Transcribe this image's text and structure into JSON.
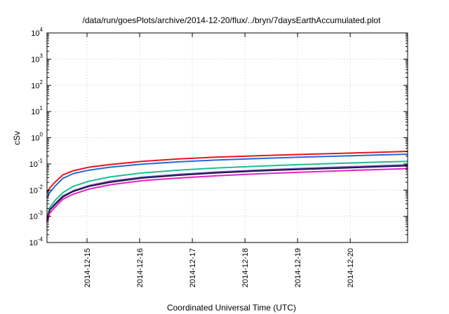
{
  "chart_data": {
    "type": "line",
    "title": "/data/run/goesPlots/archive/2014-12-20/flux/../bryn/7daysEarthAccumulated.plot",
    "xlabel": "Coordinated Universal Time (UTC)",
    "ylabel": "cSv",
    "yscale": "log",
    "ylim": [
      0.0001,
      10000
    ],
    "xlim": [
      0,
      6.85
    ],
    "grid": true,
    "y_ticks": [
      {
        "base": "10",
        "exp": "-4",
        "value": 0.0001
      },
      {
        "base": "10",
        "exp": "-3",
        "value": 0.001
      },
      {
        "base": "10",
        "exp": "-2",
        "value": 0.01
      },
      {
        "base": "10",
        "exp": "-1",
        "value": 0.1
      },
      {
        "base": "10",
        "exp": "0",
        "value": 1
      },
      {
        "base": "10",
        "exp": "1",
        "value": 10
      },
      {
        "base": "10",
        "exp": "2",
        "value": 100
      },
      {
        "base": "10",
        "exp": "3",
        "value": 1000
      },
      {
        "base": "10",
        "exp": "4",
        "value": 10000
      }
    ],
    "x_ticks": [
      {
        "label": "2014-12-15",
        "value": 0.76
      },
      {
        "label": "2014-12-16",
        "value": 1.76
      },
      {
        "label": "2014-12-17",
        "value": 2.76
      },
      {
        "label": "2014-12-18",
        "value": 3.76
      },
      {
        "label": "2014-12-19",
        "value": 4.76
      },
      {
        "label": "2014-12-20",
        "value": 5.76
      }
    ],
    "series": [
      {
        "color": "#e8151a",
        "x": [
          0,
          0.05,
          0.15,
          0.3,
          0.5,
          0.8,
          1.2,
          1.8,
          2.5,
          3.2,
          4,
          4.8,
          5.6,
          6.3,
          6.85
        ],
        "y": [
          0.008,
          0.012,
          0.02,
          0.038,
          0.055,
          0.075,
          0.095,
          0.125,
          0.155,
          0.18,
          0.205,
          0.23,
          0.255,
          0.28,
          0.3
        ]
      },
      {
        "color": "#2468e0",
        "x": [
          0,
          0.05,
          0.15,
          0.3,
          0.5,
          0.8,
          1.2,
          1.8,
          2.5,
          3.2,
          4,
          4.8,
          5.6,
          6.3,
          6.85
        ],
        "y": [
          0.005,
          0.008,
          0.014,
          0.028,
          0.043,
          0.058,
          0.075,
          0.098,
          0.12,
          0.14,
          0.16,
          0.18,
          0.2,
          0.22,
          0.235
        ]
      },
      {
        "color": "#1dbf8f",
        "x": [
          0,
          0.05,
          0.15,
          0.3,
          0.5,
          0.8,
          1.2,
          1.8,
          2.5,
          3.2,
          4,
          4.8,
          5.6,
          6.3,
          6.85
        ],
        "y": [
          0.0008,
          0.0022,
          0.004,
          0.008,
          0.014,
          0.022,
          0.032,
          0.045,
          0.058,
          0.07,
          0.082,
          0.094,
          0.106,
          0.117,
          0.125
        ]
      },
      {
        "color": "#7a50c8",
        "x": [
          0,
          0.05,
          0.15,
          0.3,
          0.5,
          0.8,
          1.2,
          1.8,
          2.5,
          3.2,
          4,
          4.8,
          5.6,
          6.3,
          6.85
        ],
        "y": [
          0.0007,
          0.0018,
          0.003,
          0.006,
          0.0095,
          0.015,
          0.022,
          0.031,
          0.04,
          0.049,
          0.058,
          0.067,
          0.076,
          0.085,
          0.092
        ]
      },
      {
        "color": "#1a1a40",
        "x": [
          0,
          0.05,
          0.15,
          0.3,
          0.5,
          0.8,
          1.2,
          1.8,
          2.5,
          3.2,
          4,
          4.8,
          5.6,
          6.3,
          6.85
        ],
        "y": [
          0.0007,
          0.0017,
          0.0028,
          0.0055,
          0.009,
          0.014,
          0.02,
          0.029,
          0.037,
          0.045,
          0.054,
          0.062,
          0.07,
          0.078,
          0.085
        ]
      },
      {
        "color": "#e81fc8",
        "x": [
          0,
          0.05,
          0.15,
          0.3,
          0.5,
          0.8,
          1.2,
          1.8,
          2.5,
          3.2,
          4,
          4.8,
          5.6,
          6.3,
          6.85
        ],
        "y": [
          0.0006,
          0.0013,
          0.0022,
          0.0045,
          0.007,
          0.011,
          0.016,
          0.023,
          0.029,
          0.035,
          0.042,
          0.048,
          0.055,
          0.061,
          0.066
        ]
      }
    ]
  }
}
